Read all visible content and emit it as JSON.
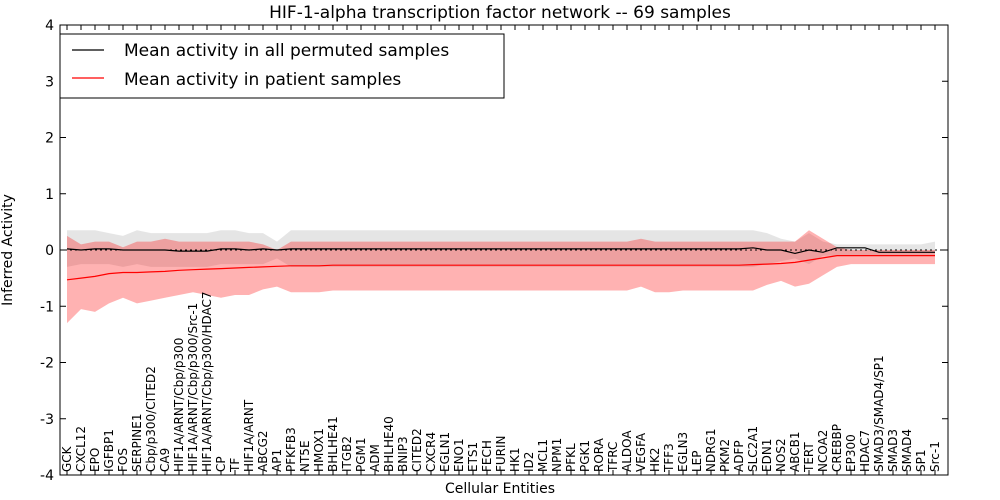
{
  "chart_data": {
    "type": "line",
    "title": "HIF-1-alpha transcription factor network -- 69 samples",
    "xlabel": "Cellular Entities",
    "ylabel": "Inferred Activity",
    "ylim": [
      -4,
      4
    ],
    "yticks": [
      -4,
      -3,
      -2,
      -1,
      0,
      1,
      2,
      3,
      4
    ],
    "grid": false,
    "legend_position": "upper-left",
    "reference_line": 0,
    "categories": [
      "GCK",
      "CXCL12",
      "EPO",
      "IGFBP1",
      "FOS",
      "SERPINE1",
      "Cbp/p300/CITED2",
      "CA9",
      "HIF1A/ARNT/Cbp/p300",
      "HIF1A/ARNT/Cbp/p300/Src-1",
      "HIF1A/ARNT/Cbp/p300/HDAC7",
      "CP",
      "TF",
      "HIF1A/ARNT",
      "ABCG2",
      "AP1",
      "PFKFB3",
      "NT5E",
      "HMOX1",
      "BHLHE41",
      "ITGB2",
      "PGM1",
      "ADM",
      "BHLHE40",
      "BNIP3",
      "CITED2",
      "CXCR4",
      "EGLN1",
      "ENO1",
      "ETS1",
      "FECH",
      "FURIN",
      "HK1",
      "ID2",
      "MCL1",
      "NPM1",
      "PFKL",
      "PGK1",
      "RORA",
      "TFRC",
      "ALDOA",
      "VEGFA",
      "HK2",
      "TFF3",
      "EGLN3",
      "LEP",
      "NDRG1",
      "PKM2",
      "ADFP",
      "SLC2A1",
      "EDN1",
      "NOS2",
      "ABCB1",
      "TERT",
      "NCOA2",
      "CREBBP",
      "EP300",
      "HDAC7",
      "SMAD3/SMAD4/SP1",
      "SMAD3",
      "SMAD4",
      "SP1",
      "Src-1"
    ],
    "series": [
      {
        "name": "Mean activity in all permuted samples",
        "color": "#000000",
        "values": [
          0.02,
          0.0,
          0.02,
          0.02,
          0.0,
          0.0,
          0.0,
          0.0,
          -0.02,
          -0.02,
          -0.02,
          0.02,
          0.02,
          0.0,
          0.02,
          0.0,
          0.02,
          0.02,
          0.02,
          0.02,
          0.02,
          0.02,
          0.02,
          0.02,
          0.02,
          0.02,
          0.02,
          0.02,
          0.02,
          0.02,
          0.02,
          0.02,
          0.02,
          0.02,
          0.02,
          0.02,
          0.02,
          0.02,
          0.02,
          0.02,
          0.02,
          0.02,
          0.02,
          0.02,
          0.02,
          0.02,
          0.02,
          0.02,
          0.02,
          0.04,
          0.0,
          0.0,
          -0.06,
          0.0,
          -0.04,
          0.04,
          0.04,
          0.04,
          -0.04,
          -0.04,
          -0.04,
          -0.04,
          -0.04
        ],
        "band_upper": [
          0.35,
          0.35,
          0.35,
          0.3,
          0.25,
          0.35,
          0.3,
          0.3,
          0.3,
          0.3,
          0.3,
          0.35,
          0.35,
          0.3,
          0.3,
          0.15,
          0.35,
          0.35,
          0.35,
          0.35,
          0.35,
          0.35,
          0.35,
          0.35,
          0.35,
          0.35,
          0.35,
          0.35,
          0.35,
          0.35,
          0.35,
          0.35,
          0.35,
          0.35,
          0.35,
          0.35,
          0.35,
          0.35,
          0.35,
          0.35,
          0.35,
          0.35,
          0.35,
          0.35,
          0.35,
          0.35,
          0.35,
          0.35,
          0.35,
          0.35,
          0.3,
          0.2,
          0.15,
          0.3,
          0.15,
          0.1,
          0.1,
          0.1,
          0.1,
          0.1,
          0.1,
          0.1,
          0.15
        ],
        "band_lower": [
          -0.3,
          -0.25,
          -0.25,
          -0.25,
          -0.3,
          -0.25,
          -0.3,
          -0.3,
          -0.3,
          -0.3,
          -0.3,
          -0.25,
          -0.25,
          -0.25,
          -0.25,
          -0.15,
          -0.3,
          -0.3,
          -0.3,
          -0.3,
          -0.3,
          -0.3,
          -0.3,
          -0.3,
          -0.3,
          -0.3,
          -0.3,
          -0.3,
          -0.3,
          -0.3,
          -0.3,
          -0.3,
          -0.3,
          -0.3,
          -0.3,
          -0.3,
          -0.3,
          -0.3,
          -0.3,
          -0.3,
          -0.3,
          -0.3,
          -0.3,
          -0.3,
          -0.3,
          -0.3,
          -0.3,
          -0.3,
          -0.3,
          -0.3,
          -0.25,
          -0.2,
          -0.15,
          -0.25,
          -0.1,
          -0.1,
          -0.1,
          -0.1,
          -0.1,
          -0.1,
          -0.1,
          -0.1,
          -0.1
        ]
      },
      {
        "name": "Mean activity in patient samples",
        "color": "#ff0000",
        "values": [
          -0.53,
          -0.5,
          -0.47,
          -0.42,
          -0.4,
          -0.4,
          -0.39,
          -0.38,
          -0.36,
          -0.35,
          -0.34,
          -0.33,
          -0.32,
          -0.31,
          -0.3,
          -0.29,
          -0.28,
          -0.28,
          -0.28,
          -0.27,
          -0.27,
          -0.27,
          -0.27,
          -0.27,
          -0.27,
          -0.27,
          -0.27,
          -0.27,
          -0.27,
          -0.27,
          -0.27,
          -0.27,
          -0.27,
          -0.27,
          -0.27,
          -0.27,
          -0.27,
          -0.27,
          -0.27,
          -0.27,
          -0.27,
          -0.27,
          -0.27,
          -0.27,
          -0.27,
          -0.27,
          -0.27,
          -0.27,
          -0.27,
          -0.26,
          -0.25,
          -0.24,
          -0.22,
          -0.18,
          -0.14,
          -0.1,
          -0.1,
          -0.1,
          -0.1,
          -0.1,
          -0.1,
          -0.1,
          -0.1
        ],
        "band_upper": [
          0.25,
          0.1,
          0.15,
          0.15,
          0.05,
          0.15,
          0.15,
          0.2,
          0.15,
          0.15,
          0.15,
          0.15,
          0.15,
          0.15,
          0.1,
          0.0,
          0.15,
          0.15,
          0.15,
          0.15,
          0.15,
          0.15,
          0.15,
          0.15,
          0.15,
          0.15,
          0.15,
          0.15,
          0.15,
          0.15,
          0.15,
          0.15,
          0.15,
          0.15,
          0.15,
          0.15,
          0.15,
          0.15,
          0.15,
          0.15,
          0.15,
          0.2,
          0.15,
          0.15,
          0.15,
          0.15,
          0.15,
          0.15,
          0.15,
          0.15,
          0.15,
          0.15,
          0.15,
          0.35,
          0.2,
          0.05,
          0.0,
          0.0,
          0.0,
          0.0,
          0.0,
          0.0,
          0.0
        ],
        "band_lower": [
          -1.3,
          -1.05,
          -1.1,
          -0.95,
          -0.85,
          -0.95,
          -0.9,
          -0.85,
          -0.8,
          -0.75,
          -0.8,
          -0.85,
          -0.8,
          -0.8,
          -0.7,
          -0.65,
          -0.75,
          -0.75,
          -0.75,
          -0.72,
          -0.72,
          -0.72,
          -0.72,
          -0.72,
          -0.72,
          -0.72,
          -0.72,
          -0.72,
          -0.72,
          -0.72,
          -0.72,
          -0.72,
          -0.72,
          -0.72,
          -0.72,
          -0.72,
          -0.72,
          -0.72,
          -0.72,
          -0.72,
          -0.72,
          -0.65,
          -0.75,
          -0.75,
          -0.72,
          -0.72,
          -0.72,
          -0.72,
          -0.72,
          -0.72,
          -0.62,
          -0.55,
          -0.65,
          -0.6,
          -0.45,
          -0.3,
          -0.25,
          -0.25,
          -0.25,
          -0.25,
          -0.25,
          -0.25,
          -0.25
        ]
      }
    ]
  }
}
